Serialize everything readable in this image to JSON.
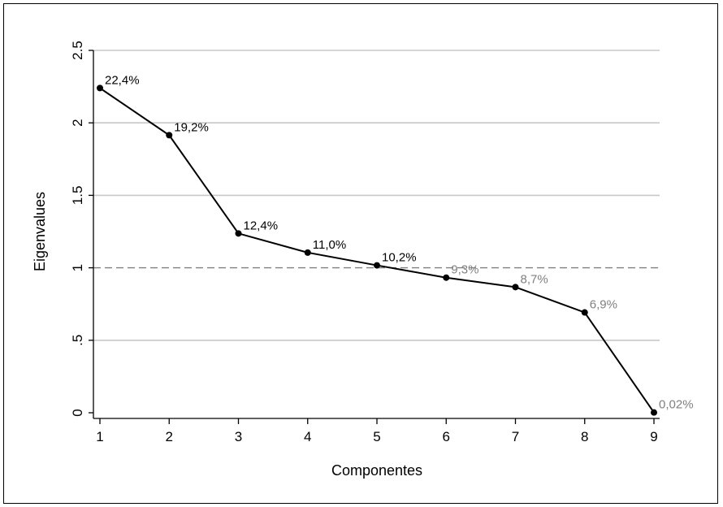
{
  "chart_data": {
    "type": "line",
    "title": "",
    "xlabel": "Componentes",
    "ylabel": "Eigenvalues",
    "x": [
      1,
      2,
      3,
      4,
      5,
      6,
      7,
      8,
      9
    ],
    "xlim": [
      1,
      9
    ],
    "ylim": [
      0,
      2.5
    ],
    "x_ticks": [
      1,
      2,
      3,
      4,
      5,
      6,
      7,
      8,
      9
    ],
    "x_tick_labels": [
      "1",
      "2",
      "3",
      "4",
      "5",
      "6",
      "7",
      "8",
      "9"
    ],
    "y_ticks": [
      0,
      0.5,
      1,
      1.5,
      2,
      2.5
    ],
    "y_tick_labels": [
      "0",
      ".5",
      "1",
      "1.5",
      "2",
      "2.5"
    ],
    "grid": true,
    "series": [
      {
        "values": [
          2.24,
          1.915,
          1.237,
          1.105,
          1.017,
          0.932,
          0.867,
          0.692,
          0.002
        ],
        "color": "#000000",
        "marker": "circle"
      }
    ],
    "data_labels": [
      "22,4%",
      "19,2%",
      "12,4%",
      "11,0%",
      "10,2%",
      "9,3%",
      "8,7%",
      "6,9%",
      "0,02%"
    ],
    "data_label_colors": [
      "#000000",
      "#000000",
      "#000000",
      "#000000",
      "#000000",
      "#808080",
      "#808080",
      "#808080",
      "#808080"
    ],
    "reference_line": {
      "y": 1,
      "style": "dashed",
      "color": "#808080"
    },
    "colors": {
      "grid": "#c8c8c8",
      "axis": "#000000",
      "line": "#000000",
      "label_dark": "#000000",
      "label_gray": "#808080"
    }
  }
}
